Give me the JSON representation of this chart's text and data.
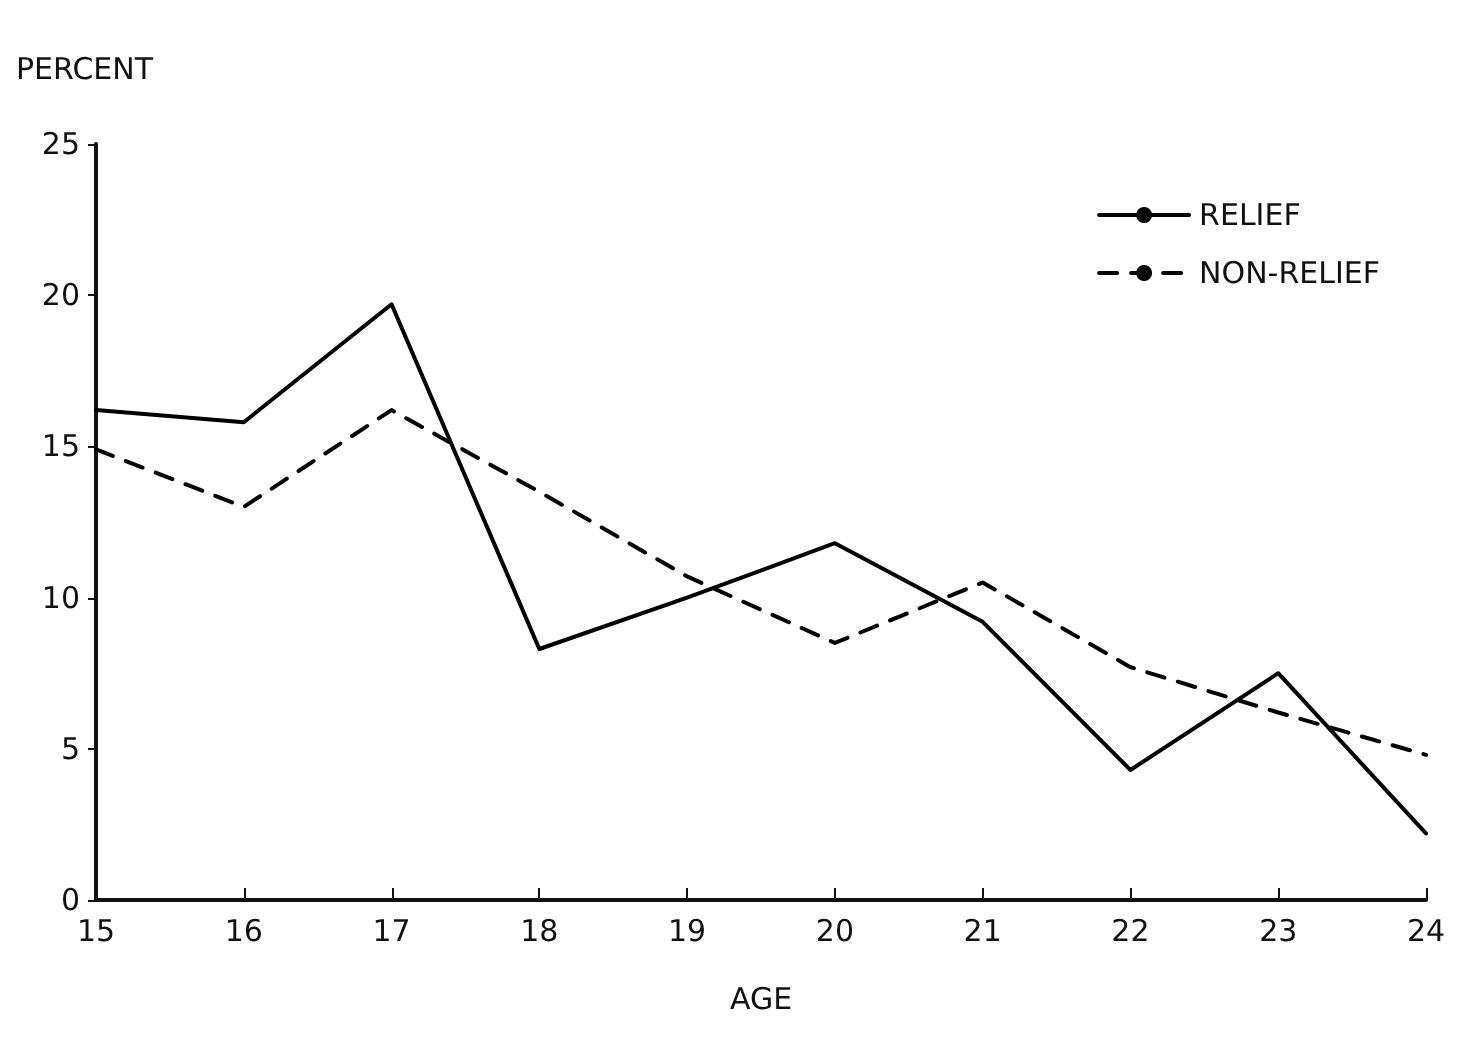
{
  "chart_data": {
    "type": "line",
    "xlabel": "AGE",
    "ylabel": "PERCENT",
    "x": [
      15,
      16,
      17,
      18,
      19,
      20,
      21,
      22,
      23,
      24
    ],
    "series": [
      {
        "name": "RELIEF",
        "color": "#000000",
        "line_style": "solid",
        "values": [
          16.2,
          15.8,
          19.7,
          8.3,
          10.0,
          11.8,
          9.2,
          4.3,
          7.5,
          2.2
        ]
      },
      {
        "name": "NON-RELIEF",
        "color": "#000000",
        "line_style": "dashed",
        "values": [
          14.9,
          13.0,
          16.2,
          13.5,
          10.7,
          8.5,
          10.5,
          7.7,
          6.2,
          4.8
        ]
      }
    ],
    "xlim": [
      15,
      24
    ],
    "xticks": [
      15,
      16,
      17,
      18,
      19,
      20,
      21,
      22,
      23,
      24
    ],
    "ylim": [
      0,
      25
    ],
    "yticks": [
      0,
      5,
      10,
      15,
      20,
      25
    ],
    "grid": false,
    "legend": "top right",
    "marker": "none"
  }
}
